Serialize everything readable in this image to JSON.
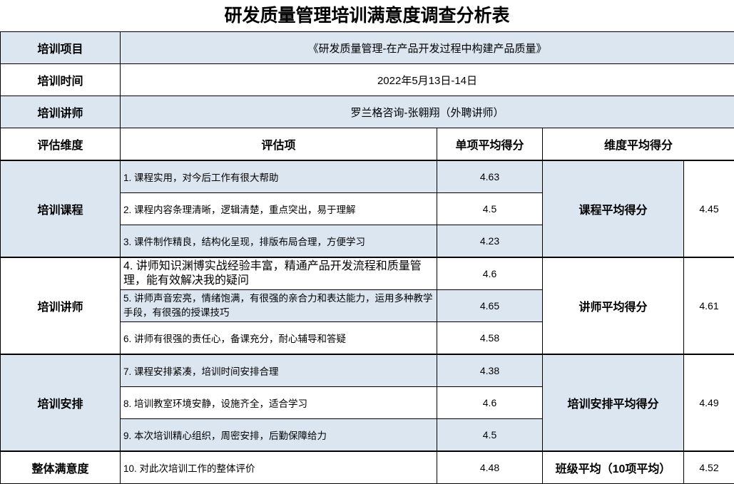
{
  "title": "研发质量管理培训满意度调查分析表",
  "info": [
    {
      "label": "培训项目",
      "value": "《研发质量管理-在产品开发过程中构建产品质量》"
    },
    {
      "label": "培训时间",
      "value": "2022年5月13日-14日"
    },
    {
      "label": "培训讲师",
      "value": "罗兰格咨询-张翱翔（外聘讲师）"
    }
  ],
  "headers": {
    "dimension": "评估维度",
    "item": "评估项",
    "item_avg": "单项平均得分",
    "dim_avg": "维度平均得分"
  },
  "groups": [
    {
      "dimension": "培训课程",
      "avg_label": "课程平均得分",
      "avg": "4.45",
      "items": [
        {
          "text": "1. 课程实用，对今后工作有很大帮助",
          "score": "4.63"
        },
        {
          "text": "2. 课程内容条理清晰，逻辑清楚，重点突出，易于理解",
          "score": "4.5"
        },
        {
          "text": "3. 课件制作精良，结构化呈现，排版布局合理，方便学习",
          "score": "4.23"
        }
      ]
    },
    {
      "dimension": "培训讲师",
      "avg_label": "讲师平均得分",
      "avg": "4.61",
      "items": [
        {
          "text": "4. 讲师知识渊博实战经验丰富，精通产品开发流程和质量管理，能有效解决我的疑问",
          "score": "4.6"
        },
        {
          "text": "5. 讲师声音宏亮，情绪饱满，有很强的亲合力和表达能力，运用多种教学手段，有很强的授课技巧",
          "score": "4.65"
        },
        {
          "text": "6. 讲师有很强的责任心，备课充分，耐心辅导和答疑",
          "score": "4.58"
        }
      ]
    },
    {
      "dimension": "培训安排",
      "avg_label": "培训安排平均得分",
      "avg": "4.49",
      "items": [
        {
          "text": "7. 课程安排紧凑，培训时间安排合理",
          "score": "4.38"
        },
        {
          "text": "8. 培训教室环境安静，设施齐全，适合学习",
          "score": "4.6"
        },
        {
          "text": "9. 本次培训精心组织，周密安排，后勤保障给力",
          "score": "4.5"
        }
      ]
    }
  ],
  "overall": {
    "dimension": "整体满意度",
    "text": "10. 对此次培训工作的整体评价",
    "score": "4.48",
    "avg_label": "班级平均（10项平均）",
    "avg": "4.52"
  },
  "colors": {
    "shade": "#DCE6F1"
  }
}
